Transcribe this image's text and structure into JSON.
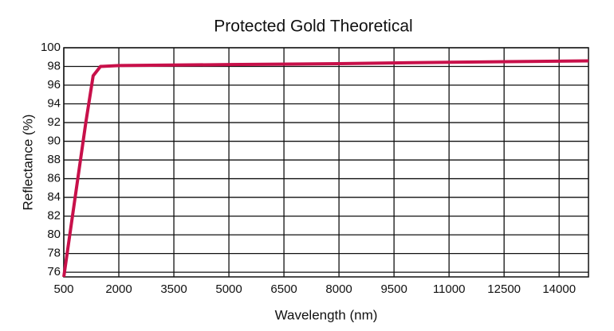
{
  "chart_data": {
    "type": "line",
    "title": "Protected Gold Theoretical",
    "x_label": "Wavelength (nm)",
    "y_label": "Reflectance (%)",
    "xlim": [
      500,
      14800
    ],
    "ylim": [
      75.5,
      100
    ],
    "xticks": [
      500,
      2000,
      3500,
      5000,
      6500,
      8000,
      9500,
      11000,
      12500,
      14000
    ],
    "yticks": [
      76,
      78,
      80,
      82,
      84,
      86,
      88,
      90,
      92,
      94,
      96,
      98,
      100
    ],
    "grid": true,
    "series": [
      {
        "color": "#c8104a",
        "x": [
          500,
          1100,
          1300,
          1500,
          2000,
          5000,
          8000,
          11000,
          14800
        ],
        "values": [
          75.5,
          92,
          97,
          98,
          98.1,
          98.2,
          98.3,
          98.45,
          98.6
        ]
      }
    ]
  }
}
